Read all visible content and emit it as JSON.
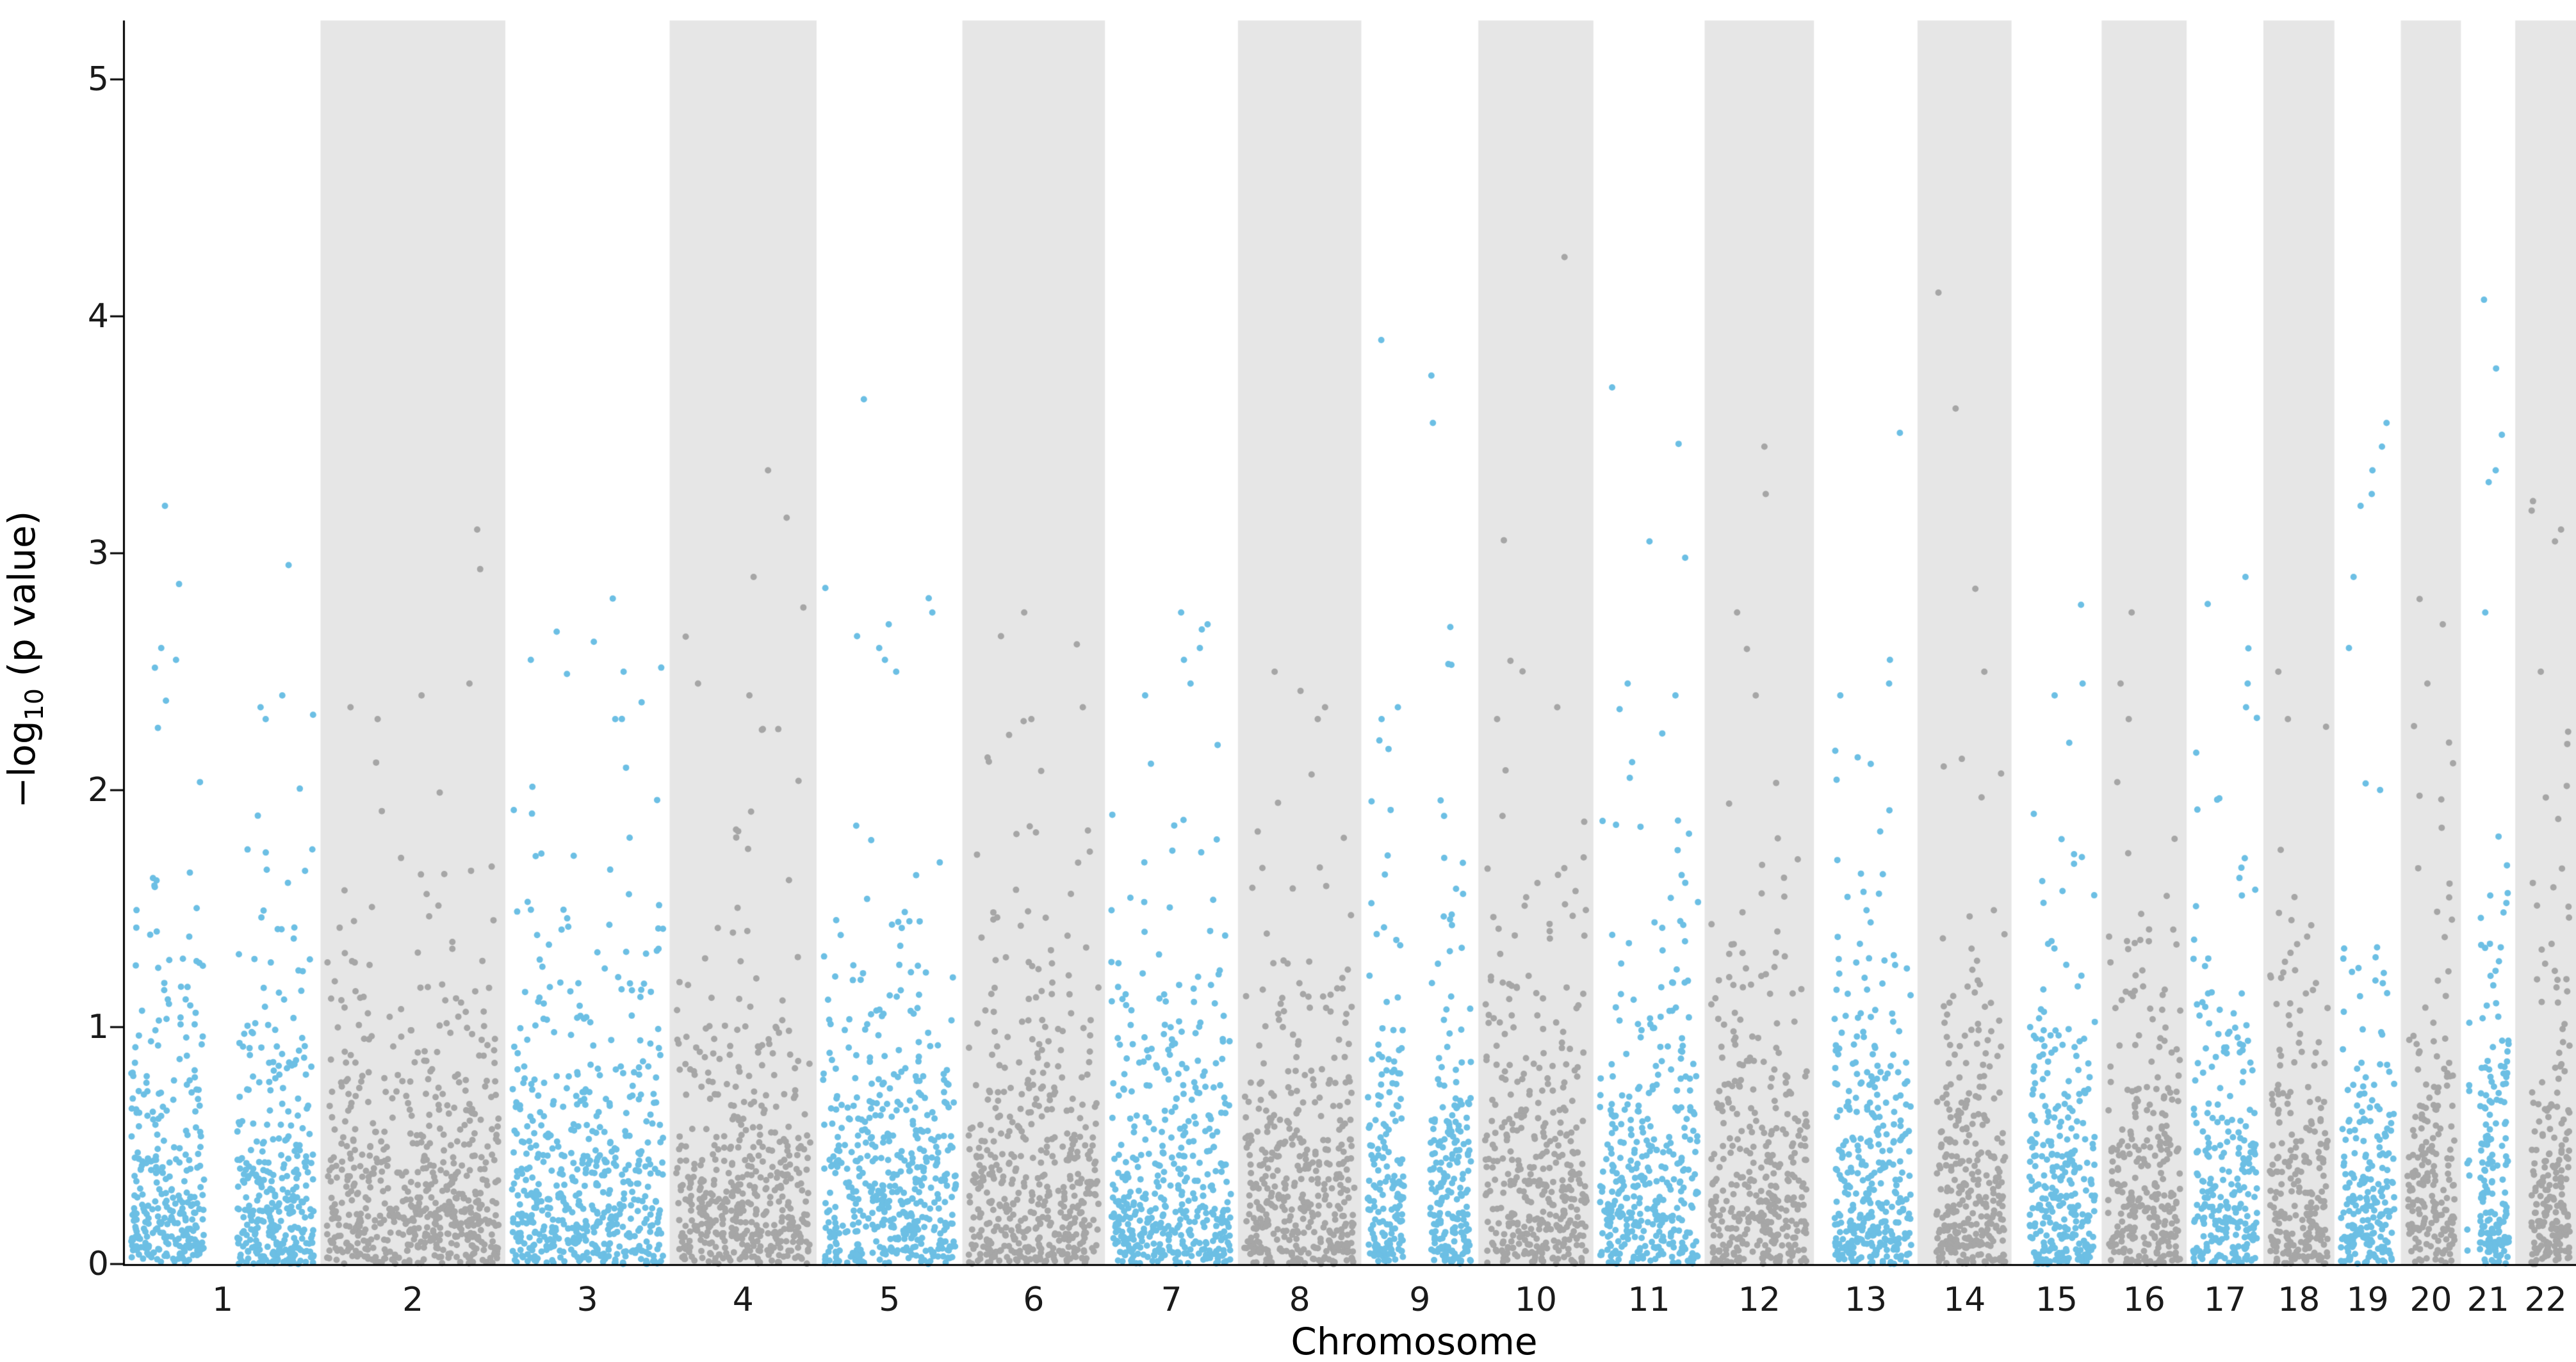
{
  "chart_data": {
    "type": "scatter",
    "variant": "manhattan-plot",
    "title": "",
    "xlabel": "Chromosome",
    "ylabel": "-log10 (p value)",
    "ylabel_prefix": "−log",
    "ylabel_sub": "10",
    "ylabel_suffix": " (p value)",
    "ylim": [
      0,
      5.25
    ],
    "y_ticks": [
      0,
      1,
      2,
      3,
      4,
      5
    ],
    "x_ticks": [
      "1",
      "2",
      "3",
      "4",
      "5",
      "6",
      "7",
      "8",
      "9",
      "10",
      "11",
      "12",
      "13",
      "14",
      "15",
      "16",
      "17",
      "18",
      "19",
      "20",
      "21",
      "22"
    ],
    "grid": false,
    "legend": "none",
    "colors": {
      "odd_chromosome_points": "#6cbfe4",
      "even_chromosome_points": "#a6a6a6",
      "even_chromosome_band": "#e6e6e6",
      "background": "#ffffff",
      "axis": "#000000"
    },
    "point_radius_px": 5,
    "chromosomes": [
      {
        "label": "1",
        "rel_width": 306,
        "n_points": 643,
        "gap": [
          0.4,
          0.58
        ],
        "peaks": [
          3.2,
          2.95,
          2.87,
          2.6,
          2.55,
          2.4,
          2.35,
          2.3
        ]
      },
      {
        "label": "2",
        "rel_width": 289,
        "n_points": 607,
        "peaks": [
          3.1,
          2.45,
          2.4,
          2.35,
          2.3
        ]
      },
      {
        "label": "3",
        "rel_width": 257,
        "n_points": 540,
        "peaks": [
          2.55,
          2.5,
          2.3
        ]
      },
      {
        "label": "4",
        "rel_width": 230,
        "n_points": 483,
        "peaks": [
          3.35,
          3.15,
          2.9,
          2.45,
          2.4
        ]
      },
      {
        "label": "5",
        "rel_width": 228,
        "n_points": 479,
        "peaks": [
          3.65,
          2.75,
          2.7,
          2.65,
          2.6,
          2.55,
          2.5
        ]
      },
      {
        "label": "6",
        "rel_width": 223,
        "n_points": 468,
        "peaks": [
          2.75,
          2.65,
          2.35,
          2.3
        ]
      },
      {
        "label": "7",
        "rel_width": 208,
        "n_points": 437,
        "peaks": [
          2.75,
          2.7,
          2.6,
          2.55,
          2.45,
          2.4
        ]
      },
      {
        "label": "8",
        "rel_width": 193,
        "n_points": 405,
        "peaks": [
          2.5,
          2.35,
          2.3
        ]
      },
      {
        "label": "9",
        "rel_width": 183,
        "n_points": 384,
        "gap": [
          0.35,
          0.6
        ],
        "peaks": [
          3.9,
          3.75,
          3.55,
          2.35,
          2.3
        ]
      },
      {
        "label": "10",
        "rel_width": 180,
        "n_points": 378,
        "peaks": [
          4.25,
          2.35,
          2.3
        ]
      },
      {
        "label": "11",
        "rel_width": 174,
        "n_points": 365,
        "peaks": [
          3.7,
          3.05,
          2.45,
          2.4
        ]
      },
      {
        "label": "12",
        "rel_width": 171,
        "n_points": 359,
        "peaks": [
          3.45,
          3.25,
          2.75,
          2.4
        ]
      },
      {
        "label": "13",
        "rel_width": 162,
        "n_points": 340,
        "gap": [
          0.0,
          0.15
        ],
        "peaks": [
          2.55,
          2.45,
          2.4
        ]
      },
      {
        "label": "14",
        "rel_width": 147,
        "n_points": 309,
        "gap": [
          0.0,
          0.15
        ],
        "peaks": [
          4.1,
          2.85,
          2.5
        ]
      },
      {
        "label": "15",
        "rel_width": 141,
        "n_points": 296,
        "gap": [
          0.0,
          0.15
        ],
        "peaks": [
          2.45,
          2.4,
          2.2
        ]
      },
      {
        "label": "16",
        "rel_width": 133,
        "n_points": 279,
        "peaks": [
          2.75,
          2.45,
          2.3
        ]
      },
      {
        "label": "17",
        "rel_width": 120,
        "n_points": 252,
        "peaks": [
          2.9,
          2.45,
          2.35
        ]
      },
      {
        "label": "18",
        "rel_width": 111,
        "n_points": 233,
        "peaks": [
          2.5,
          2.3
        ]
      },
      {
        "label": "19",
        "rel_width": 104,
        "n_points": 218,
        "peaks": [
          3.55,
          3.45,
          3.35,
          3.25,
          3.2,
          2.9,
          2.6
        ]
      },
      {
        "label": "20",
        "rel_width": 94,
        "n_points": 197,
        "peaks": [
          2.7,
          2.45
        ]
      },
      {
        "label": "21",
        "rel_width": 85,
        "n_points": 179,
        "gap": [
          0.05,
          0.3
        ],
        "peaks": [
          4.07,
          3.78,
          3.5,
          3.35,
          3.3,
          2.75
        ]
      },
      {
        "label": "22",
        "rel_width": 95,
        "n_points": 200,
        "gap": [
          0.0,
          0.2
        ],
        "peaks": [
          3.22,
          3.18,
          3.1,
          3.05,
          2.5
        ]
      }
    ]
  }
}
